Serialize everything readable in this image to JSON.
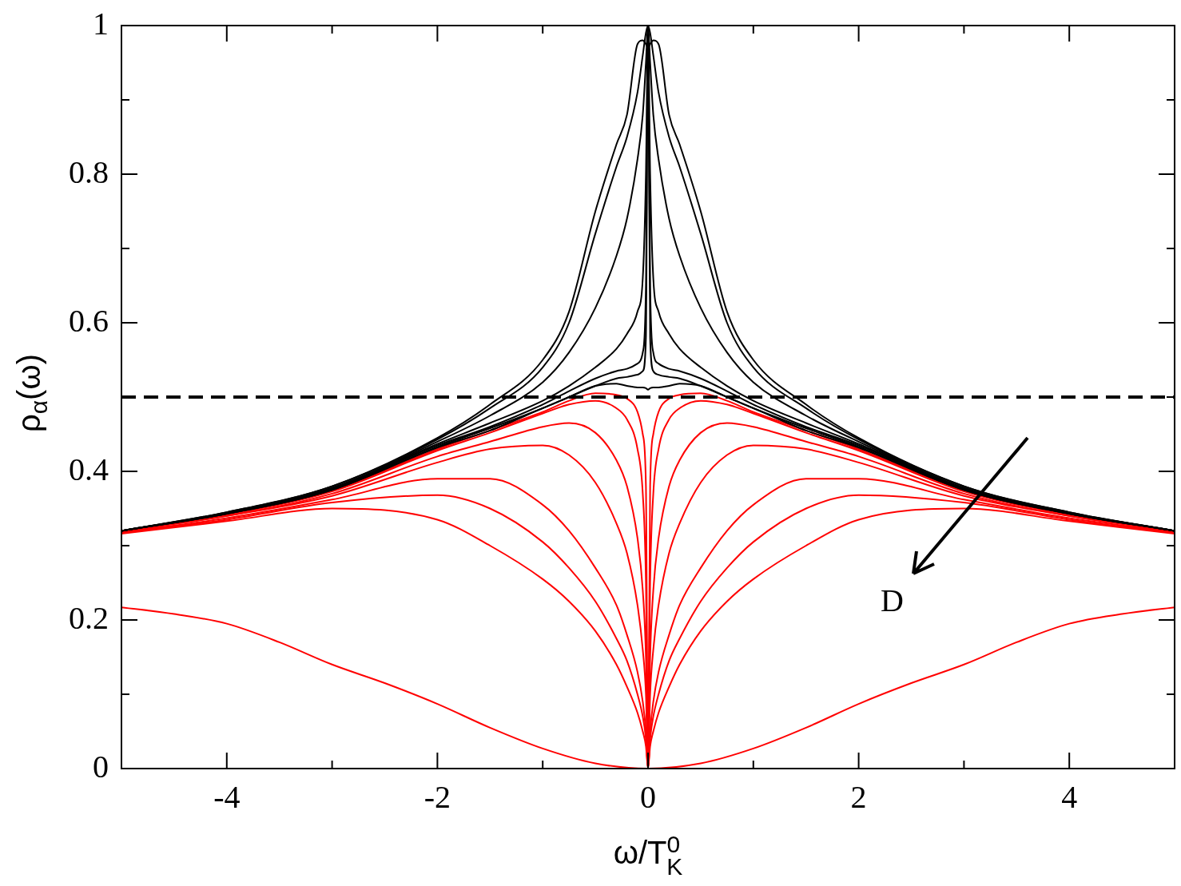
{
  "chart_data": {
    "type": "line",
    "xlabel": "ω/T$^{0}$$_{K}$",
    "ylabel": "ρ$_{α}$(ω)",
    "annotations": [
      "D"
    ],
    "xlim": [
      -5,
      5
    ],
    "ylim": [
      0,
      1
    ],
    "xticks": [
      -4,
      {
        "value": -3,
        "label": null
      },
      -2,
      {
        "value": -1,
        "label": null
      },
      0,
      {
        "value": 1,
        "label": null
      },
      2,
      {
        "value": 3,
        "label": null
      },
      4
    ],
    "yticks": [
      0,
      {
        "value": 0.1,
        "label": null
      },
      0.2,
      {
        "value": 0.3,
        "label": null
      },
      0.4,
      {
        "value": 0.5,
        "label": null
      },
      0.6,
      {
        "value": 0.7,
        "label": null
      },
      0.8,
      {
        "value": 0.9,
        "label": null
      },
      1
    ],
    "ref_lines": [
      {
        "axis": "y",
        "value": 0.5,
        "color": "#000000",
        "line_style": "dashed"
      }
    ],
    "x": [
      -5,
      -4,
      -3,
      -2,
      -1.5,
      -1,
      -0.75,
      -0.5,
      -0.3,
      -0.2,
      -0.1,
      -0.05,
      -0.02,
      0,
      0.02,
      0.05,
      0.1,
      0.2,
      0.3,
      0.5,
      0.75,
      1,
      1.5,
      2,
      3,
      4,
      5
    ],
    "series": [
      {
        "color": "#000000",
        "values": [
          0.32,
          0.345,
          0.38,
          0.445,
          0.49,
          0.55,
          0.615,
          0.75,
          0.84,
          0.88,
          0.975,
          0.98,
          0.975,
          0.97,
          0.975,
          0.98,
          0.975,
          0.88,
          0.84,
          0.75,
          0.615,
          0.55,
          0.49,
          0.445,
          0.38,
          0.345,
          0.32
        ]
      },
      {
        "color": "#000000",
        "values": [
          0.32,
          0.345,
          0.38,
          0.443,
          0.485,
          0.54,
          0.6,
          0.72,
          0.81,
          0.85,
          0.91,
          0.96,
          0.99,
          1,
          0.99,
          0.96,
          0.91,
          0.85,
          0.81,
          0.72,
          0.6,
          0.54,
          0.485,
          0.443,
          0.38,
          0.345,
          0.32
        ]
      },
      {
        "color": "#000000",
        "values": [
          0.32,
          0.344,
          0.378,
          0.44,
          0.475,
          0.52,
          0.56,
          0.62,
          0.69,
          0.74,
          0.82,
          0.88,
          0.95,
          1,
          0.95,
          0.88,
          0.82,
          0.74,
          0.69,
          0.62,
          0.56,
          0.52,
          0.475,
          0.44,
          0.378,
          0.344,
          0.32
        ]
      },
      {
        "color": "#000000",
        "values": [
          0.32,
          0.344,
          0.377,
          0.437,
          0.465,
          0.495,
          0.515,
          0.54,
          0.565,
          0.585,
          0.615,
          0.66,
          0.8,
          1,
          0.8,
          0.66,
          0.615,
          0.585,
          0.565,
          0.54,
          0.515,
          0.495,
          0.465,
          0.437,
          0.377,
          0.344,
          0.32
        ]
      },
      {
        "color": "#000000",
        "values": [
          0.32,
          0.343,
          0.376,
          0.435,
          0.46,
          0.49,
          0.508,
          0.525,
          0.535,
          0.538,
          0.545,
          0.56,
          0.65,
          1,
          0.65,
          0.56,
          0.545,
          0.538,
          0.535,
          0.525,
          0.508,
          0.49,
          0.46,
          0.435,
          0.376,
          0.343,
          0.32
        ]
      },
      {
        "color": "#000000",
        "values": [
          0.32,
          0.343,
          0.375,
          0.433,
          0.458,
          0.485,
          0.5,
          0.515,
          0.525,
          0.527,
          0.53,
          0.535,
          0.58,
          1,
          0.58,
          0.535,
          0.53,
          0.527,
          0.525,
          0.515,
          0.5,
          0.485,
          0.458,
          0.433,
          0.375,
          0.343,
          0.32
        ]
      },
      {
        "color": "#000000",
        "values": [
          0.32,
          0.343,
          0.375,
          0.432,
          0.455,
          0.485,
          0.5,
          0.515,
          0.518,
          0.515,
          0.513,
          0.513,
          0.512,
          0.51,
          0.512,
          0.513,
          0.513,
          0.515,
          0.518,
          0.515,
          0.5,
          0.485,
          0.455,
          0.432,
          0.375,
          0.343,
          0.32
        ]
      },
      {
        "color": "#ff0000",
        "values": [
          0.32,
          0.342,
          0.374,
          0.43,
          0.455,
          0.48,
          0.495,
          0.505,
          0.503,
          0.498,
          0.48,
          0.45,
          0.38,
          0,
          0.38,
          0.45,
          0.48,
          0.498,
          0.503,
          0.505,
          0.495,
          0.48,
          0.455,
          0.43,
          0.374,
          0.342,
          0.32
        ]
      },
      {
        "color": "#ff0000",
        "values": [
          0.32,
          0.342,
          0.373,
          0.428,
          0.452,
          0.478,
          0.49,
          0.495,
          0.485,
          0.47,
          0.43,
          0.37,
          0.25,
          0,
          0.25,
          0.37,
          0.43,
          0.47,
          0.485,
          0.495,
          0.49,
          0.478,
          0.452,
          0.428,
          0.373,
          0.342,
          0.32
        ]
      },
      {
        "color": "#ff0000",
        "values": [
          0.32,
          0.34,
          0.37,
          0.42,
          0.44,
          0.46,
          0.465,
          0.452,
          0.415,
          0.38,
          0.31,
          0.24,
          0.15,
          0,
          0.15,
          0.24,
          0.31,
          0.38,
          0.415,
          0.452,
          0.465,
          0.46,
          0.44,
          0.42,
          0.37,
          0.34,
          0.32
        ]
      },
      {
        "color": "#ff0000",
        "values": [
          0.319,
          0.34,
          0.367,
          0.412,
          0.43,
          0.435,
          0.422,
          0.385,
          0.33,
          0.29,
          0.22,
          0.16,
          0.1,
          0,
          0.1,
          0.16,
          0.22,
          0.29,
          0.33,
          0.385,
          0.422,
          0.435,
          0.43,
          0.412,
          0.367,
          0.34,
          0.319
        ]
      },
      {
        "color": "#ff0000",
        "values": [
          0.318,
          0.337,
          0.362,
          0.39,
          0.39,
          0.355,
          0.32,
          0.27,
          0.22,
          0.18,
          0.13,
          0.09,
          0.05,
          0,
          0.05,
          0.09,
          0.13,
          0.18,
          0.22,
          0.27,
          0.32,
          0.355,
          0.39,
          0.39,
          0.362,
          0.337,
          0.318
        ]
      },
      {
        "color": "#ff0000",
        "values": [
          0.317,
          0.335,
          0.358,
          0.368,
          0.35,
          0.305,
          0.27,
          0.225,
          0.175,
          0.145,
          0.1,
          0.07,
          0.04,
          0,
          0.04,
          0.07,
          0.1,
          0.145,
          0.175,
          0.225,
          0.27,
          0.305,
          0.35,
          0.368,
          0.358,
          0.335,
          0.317
        ]
      },
      {
        "color": "#ff0000",
        "values": [
          0.316,
          0.333,
          0.35,
          0.335,
          0.3,
          0.255,
          0.225,
          0.185,
          0.14,
          0.11,
          0.075,
          0.05,
          0.03,
          0,
          0.03,
          0.05,
          0.075,
          0.11,
          0.14,
          0.185,
          0.225,
          0.255,
          0.3,
          0.335,
          0.35,
          0.333,
          0.316
        ]
      },
      {
        "color": "#ff0000",
        "x": [
          -5,
          -4.5,
          -4,
          -3.5,
          -3,
          -2.5,
          -2,
          -1.5,
          -1,
          -0.5,
          0,
          0.5,
          1,
          1.5,
          2,
          2.5,
          3,
          3.5,
          4,
          4.5,
          5
        ],
        "values": [
          0.217,
          0.208,
          0.195,
          0.17,
          0.14,
          0.115,
          0.087,
          0.055,
          0.027,
          0.007,
          0,
          0.007,
          0.027,
          0.055,
          0.087,
          0.115,
          0.14,
          0.17,
          0.195,
          0.208,
          0.217
        ]
      }
    ]
  }
}
